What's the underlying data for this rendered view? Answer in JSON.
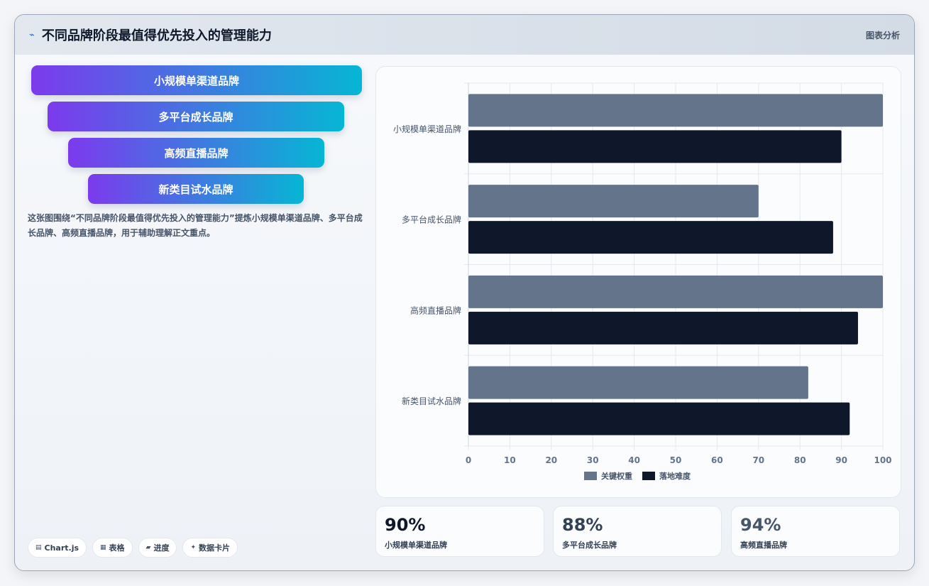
{
  "header": {
    "title": "不同品牌阶段最值得优先投入的管理能力",
    "tag": "图表分析",
    "logo_icon": "pulse-icon"
  },
  "funnel": [
    "小规模单渠道品牌",
    "多平台成长品牌",
    "高频直播品牌",
    "新类目试水品牌"
  ],
  "description": "这张图围绕“不同品牌阶段最值得优先投入的管理能力”提炼小规模单渠道品牌、多平台成长品牌、高频直播品牌，用于辅助理解正文重点。",
  "chips": [
    {
      "icon": "chart-icon",
      "label": "Chart.js"
    },
    {
      "icon": "table-icon",
      "label": "表格"
    },
    {
      "icon": "progress-icon",
      "label": "进度"
    },
    {
      "icon": "sparkle-icon",
      "label": "数据卡片"
    }
  ],
  "stats": [
    {
      "value": "90%",
      "label": "小规模单渠道品牌",
      "color": "#0f172a"
    },
    {
      "value": "88%",
      "label": "多平台成长品牌",
      "color": "#334155"
    },
    {
      "value": "94%",
      "label": "高频直播品牌",
      "color": "#475569"
    }
  ],
  "chart_data": {
    "type": "bar",
    "orientation": "horizontal",
    "categories": [
      "小规模单渠道品牌",
      "多平台成长品牌",
      "高频直播品牌",
      "新类目试水品牌"
    ],
    "series": [
      {
        "name": "关键权重",
        "values": [
          100,
          70,
          100,
          82
        ],
        "color": "#64748b"
      },
      {
        "name": "落地难度",
        "values": [
          90,
          88,
          94,
          92
        ],
        "color": "#0f172a"
      }
    ],
    "xlim": [
      0,
      100
    ],
    "xticks": [
      "0",
      "10",
      "20",
      "30",
      "40",
      "50",
      "60",
      "70",
      "80",
      "90",
      "100"
    ],
    "grid": true,
    "legend": "bottom"
  }
}
